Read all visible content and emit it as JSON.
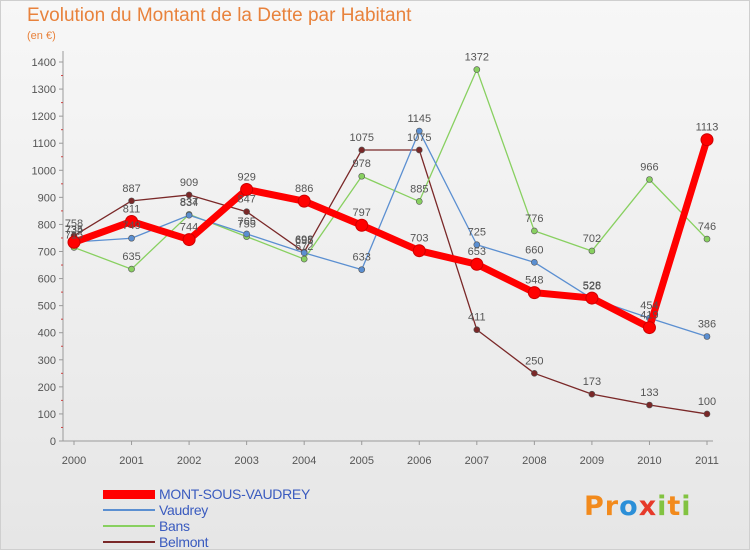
{
  "chart_data": {
    "type": "line",
    "title": "Evolution du Montant de la Dette par Habitant",
    "unit_label": "(en €)",
    "ylim": [
      0,
      1400
    ],
    "yticks": [
      0,
      100,
      200,
      300,
      400,
      500,
      600,
      700,
      800,
      900,
      1000,
      1100,
      1200,
      1300,
      1400
    ],
    "x": [
      "2000",
      "2001",
      "2002",
      "2003",
      "2004",
      "2005",
      "2006",
      "2007",
      "2008",
      "2009",
      "2010",
      "2011"
    ],
    "grid": false,
    "legend_position": "bottom-left",
    "series": [
      {
        "name": "MONT-SOUS-VAUDREY",
        "color": "#ff0000",
        "values": [
          734,
          811,
          744,
          929,
          886,
          797,
          703,
          653,
          548,
          528,
          419,
          1113
        ],
        "labels": [
          "734",
          "811",
          "744",
          "929",
          "886",
          "797",
          "703",
          "653",
          "548",
          "528",
          "419",
          "1113"
        ]
      },
      {
        "name": "Vaudrey",
        "color": "#5b8fd1",
        "values": [
          735,
          749,
          834,
          765,
          695,
          633,
          1145,
          725,
          660,
          526,
          454,
          386
        ],
        "labels": [
          "735",
          "749",
          "834",
          "765",
          "695",
          "633",
          "1145",
          "725",
          "660",
          "526",
          "454",
          "386"
        ]
      },
      {
        "name": "Bans",
        "color": "#88d060",
        "values": [
          715,
          635,
          837,
          755,
          672,
          978,
          885,
          1372,
          776,
          702,
          966,
          746
        ],
        "labels": [
          "715",
          "635",
          "837",
          "755",
          "672",
          "978",
          "885",
          "1372",
          "776",
          "702",
          "966",
          "746"
        ]
      },
      {
        "name": "Belmont",
        "color": "#7a2828",
        "values": [
          758,
          887,
          909,
          847,
          698,
          1075,
          1075,
          411,
          250,
          173,
          133,
          100
        ],
        "labels": [
          "758",
          "887",
          "909",
          "847",
          "698",
          "1075",
          "1075",
          "411",
          "250",
          "173",
          "133",
          "100"
        ]
      }
    ]
  },
  "logo": {
    "text": "Proxiti",
    "letters": [
      {
        "ch": "P",
        "color": "#f28a1c"
      },
      {
        "ch": "r",
        "color": "#f28a1c"
      },
      {
        "ch": "o",
        "color": "#2b8fd8"
      },
      {
        "ch": "x",
        "color": "#e63a2a"
      },
      {
        "ch": "i",
        "color": "#82c341"
      },
      {
        "ch": "t",
        "color": "#f28a1c"
      },
      {
        "ch": "i",
        "color": "#82c341"
      }
    ]
  }
}
